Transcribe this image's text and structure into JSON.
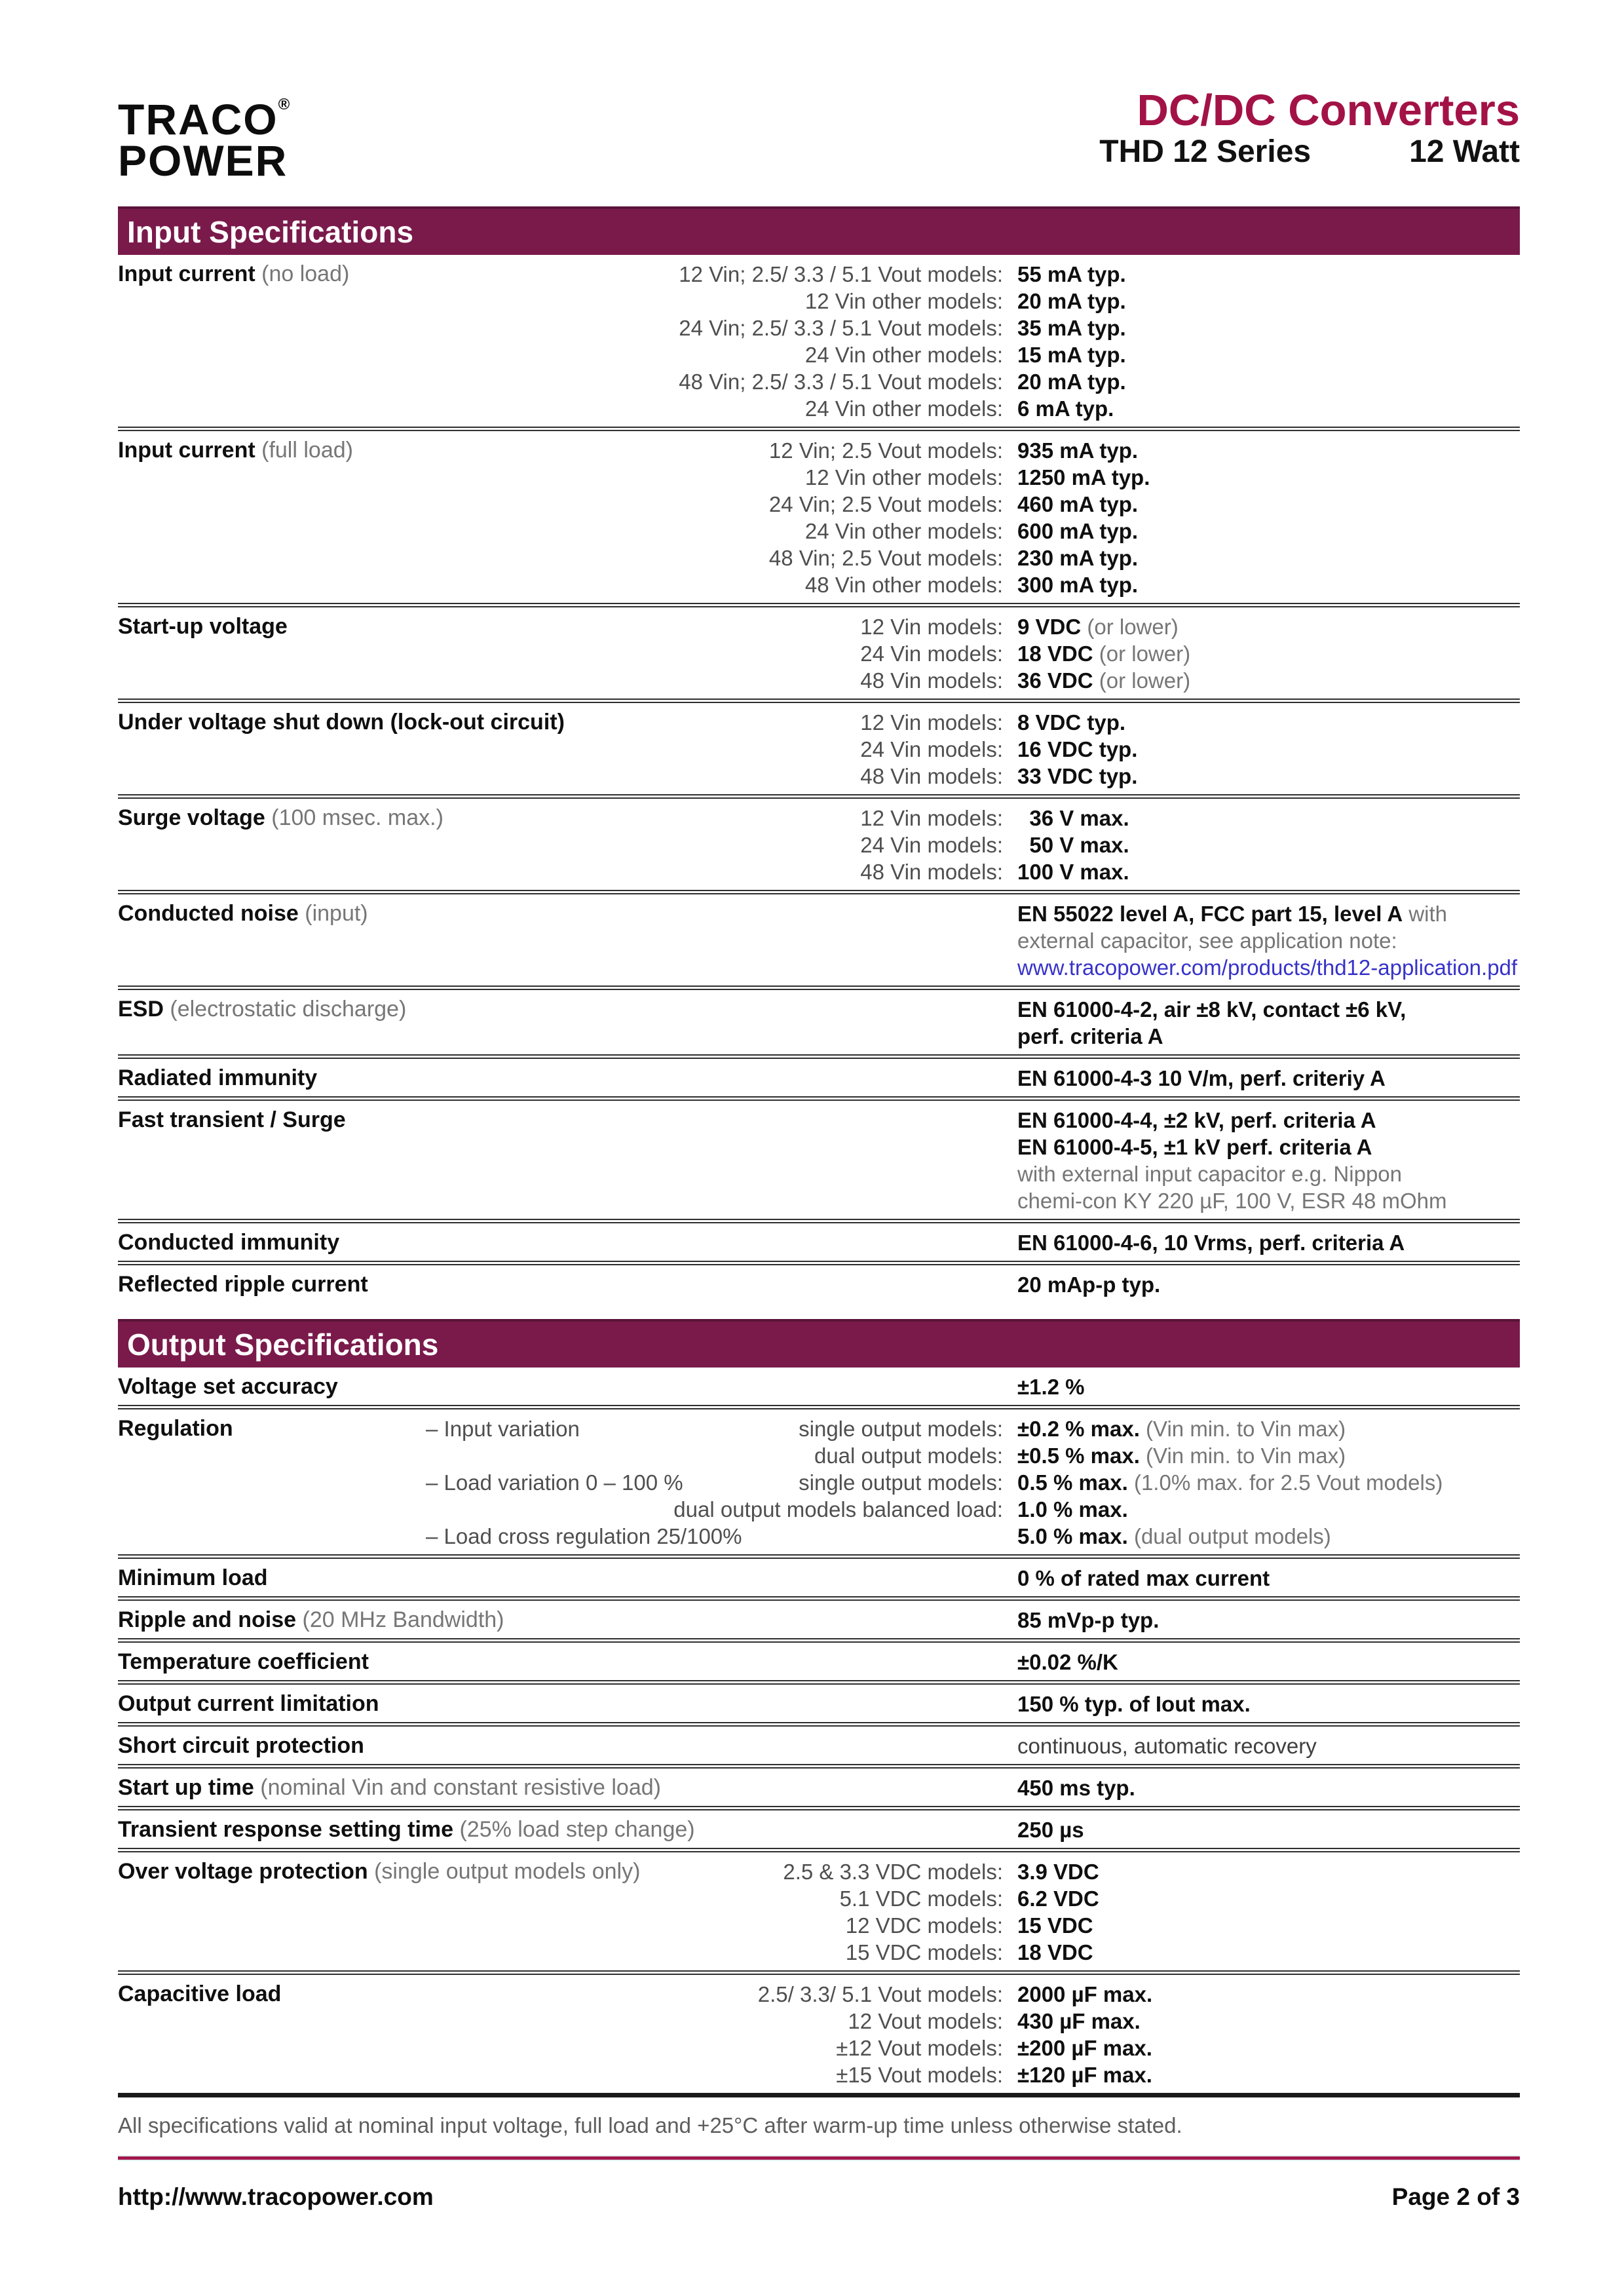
{
  "colors": {
    "band": "#7A1A4B",
    "title_crimson": "#A31246",
    "footer_rule": "#A3174E",
    "link_blue": "#3732C8"
  },
  "header": {
    "logo_line1": "TRACO",
    "logo_reg": "®",
    "logo_line2": "POWER",
    "title": "DC/DC Converters",
    "series": "THD 12 Series",
    "watt": "12 Watt"
  },
  "sections": [
    {
      "title": "Input Specifications",
      "rows": [
        {
          "label": "Input current",
          "note": "(no load)",
          "lines": [
            {
              "cond": "12 Vin; 2.5/ 3.3 / 5.1 Vout models:",
              "bold": "55 mA typ."
            },
            {
              "cond": "12 Vin other models:",
              "bold": "20 mA typ."
            },
            {
              "cond": "24 Vin; 2.5/ 3.3 / 5.1 Vout models:",
              "bold": "35 mA typ."
            },
            {
              "cond": "24 Vin other models:",
              "bold": "15 mA typ."
            },
            {
              "cond": "48 Vin; 2.5/ 3.3 / 5.1 Vout models:",
              "bold": "20 mA typ."
            },
            {
              "cond": "24 Vin other models:",
              "bold": "6 mA typ."
            }
          ]
        },
        {
          "label": "Input current",
          "note": "(full load)",
          "lines": [
            {
              "cond": "12 Vin; 2.5 Vout models:",
              "bold": "935 mA typ."
            },
            {
              "cond": "12 Vin other models:",
              "bold": "1250 mA typ."
            },
            {
              "cond": "24 Vin; 2.5 Vout models:",
              "bold": "460 mA typ."
            },
            {
              "cond": "24 Vin other models:",
              "bold": "600 mA typ."
            },
            {
              "cond": "48 Vin; 2.5 Vout models:",
              "bold": "230 mA typ."
            },
            {
              "cond": "48 Vin other models:",
              "bold": "300 mA typ."
            }
          ]
        },
        {
          "label": "Start-up voltage",
          "note": "",
          "lines": [
            {
              "cond": "12 Vin models:",
              "bold": "9 VDC",
              "normal": " (or lower)"
            },
            {
              "cond": "24 Vin models:",
              "bold": "18 VDC",
              "normal": " (or lower)"
            },
            {
              "cond": "48 Vin models:",
              "bold": "36 VDC",
              "normal": " (or lower)"
            }
          ]
        },
        {
          "label": "Under voltage shut down (lock-out circuit)",
          "note": "",
          "lines": [
            {
              "cond": "12 Vin models:",
              "bold": "8 VDC typ."
            },
            {
              "cond": "24 Vin models:",
              "bold": "16 VDC typ."
            },
            {
              "cond": "48 Vin models:",
              "bold": "33 VDC typ."
            }
          ]
        },
        {
          "label": "Surge voltage",
          "note": "(100 msec. max.)",
          "lines": [
            {
              "cond": "12 Vin models:",
              "bold": " 36 V max."
            },
            {
              "cond": "24 Vin models:",
              "bold": " 50 V max."
            },
            {
              "cond": "48 Vin models:",
              "bold": "100 V max."
            }
          ]
        },
        {
          "label": "Conducted noise",
          "note": "(input)",
          "lines": [
            {
              "bold": "EN 55022 level A, FCC part 15, level A",
              "normal": " with"
            },
            {
              "normal": "external capacitor, see application note:"
            },
            {
              "link": "www.tracopower.com/products/thd12-application.pdf"
            }
          ]
        },
        {
          "label": "ESD",
          "note": "(electrostatic discharge)",
          "lines": [
            {
              "bold": "EN 61000-4-2, air ±8 kV, contact ±6 kV,"
            },
            {
              "bold": "perf. criteria A"
            }
          ]
        },
        {
          "label": "Radiated immunity",
          "note": "",
          "lines": [
            {
              "bold": "EN 61000-4-3 10 V/m, perf. criteriy A"
            }
          ]
        },
        {
          "label": "Fast transient / Surge",
          "note": "",
          "lines": [
            {
              "bold": "EN 61000-4-4, ±2 kV, perf. criteria A"
            },
            {
              "bold": "EN 61000-4-5, ±1 kV perf. criteria A"
            },
            {
              "normal": "with external input capacitor e.g. Nippon"
            },
            {
              "normal": "chemi-con KY 220 µF, 100 V, ESR 48 mOhm"
            }
          ]
        },
        {
          "label": "Conducted immunity",
          "note": "",
          "lines": [
            {
              "bold": "EN 61000-4-6, 10 Vrms, perf. criteria A"
            }
          ]
        },
        {
          "label": "Reflected ripple current",
          "note": "",
          "lines": [
            {
              "bold": "20 mAp-p typ."
            }
          ]
        }
      ]
    },
    {
      "title": "Output Specifications",
      "rows": [
        {
          "label": "Voltage set accuracy",
          "note": "",
          "lines": [
            {
              "bold": "±1.2 %"
            }
          ]
        },
        {
          "label": "Regulation",
          "note": "",
          "lines": [
            {
              "sub": "– Input variation",
              "cond": "single output models:",
              "bold": "±0.2 % max.",
              "normal": " (Vin min. to Vin max)"
            },
            {
              "cond": "dual output models:",
              "bold": "±0.5 % max.",
              "normal": " (Vin min. to Vin max)"
            },
            {
              "sub": "– Load variation 0 – 100 %",
              "cond": "single output models:",
              "bold": "0.5 % max.",
              "normal": " (1.0% max. for 2.5 Vout models)"
            },
            {
              "cond": "dual output models balanced load:",
              "bold": "1.0 % max."
            },
            {
              "sub": "– Load cross regulation 25/100%",
              "bold": "5.0 % max.",
              "normal": " (dual output models)"
            }
          ]
        },
        {
          "label": "Minimum load",
          "note": "",
          "lines": [
            {
              "bold": "0 % of rated max current"
            }
          ]
        },
        {
          "label": "Ripple and noise",
          "note": "(20 MHz Bandwidth)",
          "lines": [
            {
              "bold": "85 mVp-p typ."
            }
          ]
        },
        {
          "label": "Temperature coefficient",
          "note": "",
          "lines": [
            {
              "bold": "±0.02 %/K"
            }
          ]
        },
        {
          "label": "Output current limitation",
          "note": "",
          "lines": [
            {
              "bold": "150 % typ. of Iout max."
            }
          ]
        },
        {
          "label": "Short circuit protection",
          "note": "",
          "lines": [
            {
              "normal2": "continuous, automatic recovery"
            }
          ]
        },
        {
          "label": "Start up time",
          "note": "(nominal Vin and constant resistive load)",
          "lines": [
            {
              "bold": "450 ms typ."
            }
          ]
        },
        {
          "label": "Transient response setting time",
          "note": "(25% load step change)",
          "lines": [
            {
              "bold": "250 µs"
            }
          ]
        },
        {
          "label": "Over voltage protection",
          "note": "(single output models only)",
          "lines": [
            {
              "cond": "2.5 & 3.3 VDC models:",
              "bold": "3.9 VDC"
            },
            {
              "cond": "5.1 VDC models:",
              "bold": "6.2 VDC"
            },
            {
              "cond": "12 VDC models:",
              "bold": "15 VDC"
            },
            {
              "cond": "15 VDC models:",
              "bold": "18 VDC"
            }
          ]
        },
        {
          "label": "Capacitive load",
          "note": "",
          "lines": [
            {
              "cond": "2.5/ 3.3/ 5.1 Vout models:",
              "bold": "2000 µF max."
            },
            {
              "cond": "12 Vout models:",
              "bold": "430 µF max."
            },
            {
              "cond": "±12 Vout models:",
              "bold": "±200 µF max."
            },
            {
              "cond": "±15 Vout models:",
              "bold": "±120 µF max."
            }
          ]
        }
      ]
    }
  ],
  "footnote": "All specifications valid at nominal input voltage, full load and +25°C after warm-up time unless otherwise stated.",
  "footer": {
    "url": "http://www.tracopower.com",
    "page": "Page 2 of 3"
  }
}
